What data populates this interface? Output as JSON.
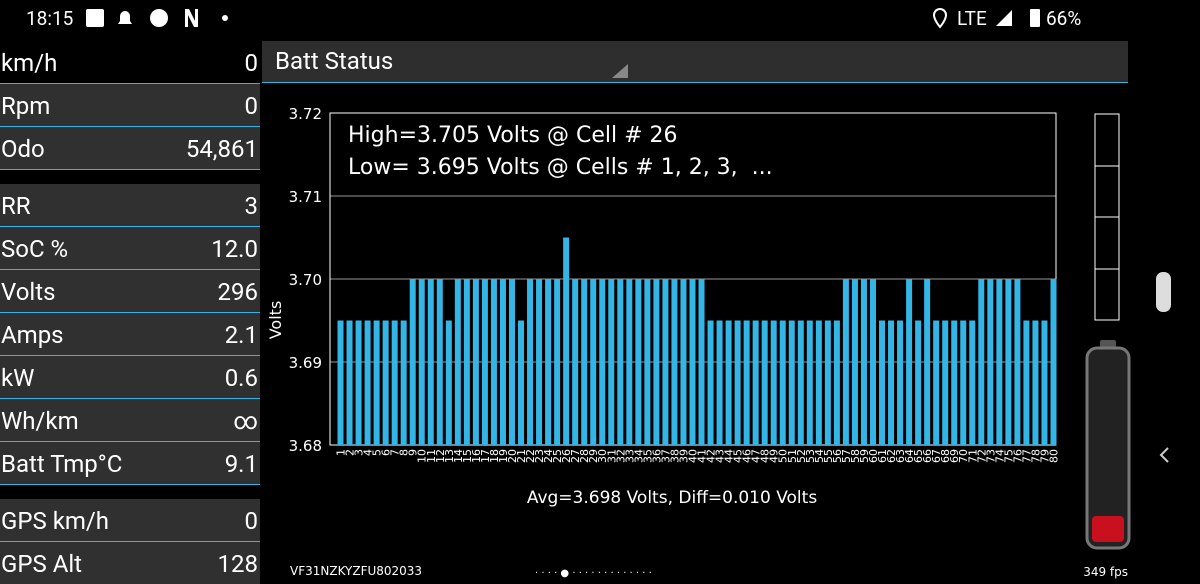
{
  "status_bar": {
    "time": "18:15",
    "network": "LTE",
    "battery": "66%"
  },
  "panel": {
    "groups": [
      [
        {
          "label": "km/h",
          "value": "0"
        },
        {
          "label": "Rpm",
          "value": "0"
        },
        {
          "label": "Odo",
          "value": "54,861"
        }
      ],
      [
        {
          "label": "RR",
          "value": "3"
        },
        {
          "label": "SoC %",
          "value": "12.0"
        },
        {
          "label": "Volts",
          "value": "296"
        },
        {
          "label": "Amps",
          "value": "2.1"
        },
        {
          "label": "kW",
          "value": "0.6"
        },
        {
          "label": "Wh/km",
          "value": "∞"
        },
        {
          "label": "Batt Tmp°C",
          "value": "9.1"
        }
      ],
      [
        {
          "label": "GPS km/h",
          "value": "0"
        },
        {
          "label": "GPS Alt",
          "value": "128"
        }
      ]
    ]
  },
  "header": {
    "title": "Batt Status"
  },
  "chart_data": {
    "type": "bar",
    "annotations": [
      "High=3.705 Volts @ Cell # 26",
      "Low= 3.695 Volts @ Cells # 1, 2, 3,  ..."
    ],
    "xlabel": "Avg=3.698 Volts, Diff=0.010 Volts",
    "ylabel": "Volts",
    "categories": [
      "1",
      "2",
      "3",
      "4",
      "5",
      "6",
      "7",
      "8",
      "9",
      "10",
      "11",
      "12",
      "13",
      "14",
      "15",
      "16",
      "17",
      "18",
      "19",
      "20",
      "21",
      "22",
      "23",
      "24",
      "25",
      "26",
      "27",
      "28",
      "29",
      "30",
      "31",
      "32",
      "33",
      "34",
      "35",
      "36",
      "37",
      "38",
      "39",
      "40",
      "41",
      "42",
      "43",
      "44",
      "45",
      "46",
      "47",
      "48",
      "49",
      "50",
      "51",
      "52",
      "53",
      "54",
      "55",
      "56",
      "57",
      "58",
      "59",
      "60",
      "61",
      "62",
      "63",
      "64",
      "65",
      "66",
      "67",
      "68",
      "69",
      "70",
      "71",
      "72",
      "73",
      "74",
      "75",
      "76",
      "77",
      "78",
      "79",
      "80"
    ],
    "values": [
      3.695,
      3.695,
      3.695,
      3.695,
      3.695,
      3.695,
      3.695,
      3.695,
      3.7,
      3.7,
      3.7,
      3.7,
      3.695,
      3.7,
      3.7,
      3.7,
      3.7,
      3.7,
      3.7,
      3.7,
      3.695,
      3.7,
      3.7,
      3.7,
      3.7,
      3.705,
      3.7,
      3.7,
      3.7,
      3.7,
      3.7,
      3.7,
      3.7,
      3.7,
      3.7,
      3.7,
      3.7,
      3.7,
      3.7,
      3.7,
      3.7,
      3.695,
      3.695,
      3.695,
      3.695,
      3.695,
      3.695,
      3.695,
      3.695,
      3.695,
      3.695,
      3.695,
      3.695,
      3.695,
      3.695,
      3.695,
      3.7,
      3.7,
      3.7,
      3.7,
      3.695,
      3.695,
      3.695,
      3.7,
      3.695,
      3.7,
      3.695,
      3.695,
      3.695,
      3.695,
      3.695,
      3.7,
      3.7,
      3.7,
      3.7,
      3.7,
      3.695,
      3.695,
      3.695,
      3.7
    ],
    "color": "#33b5e5",
    "ylim": [
      3.68,
      3.72
    ],
    "yticks": [
      3.68,
      3.69,
      {
        "value": 3.7,
        "label": "3.70"
      },
      3.71,
      3.72
    ],
    "grid": true
  },
  "footer": {
    "vin": "VF31NZKYZFU802033",
    "fps": "349 fps"
  }
}
